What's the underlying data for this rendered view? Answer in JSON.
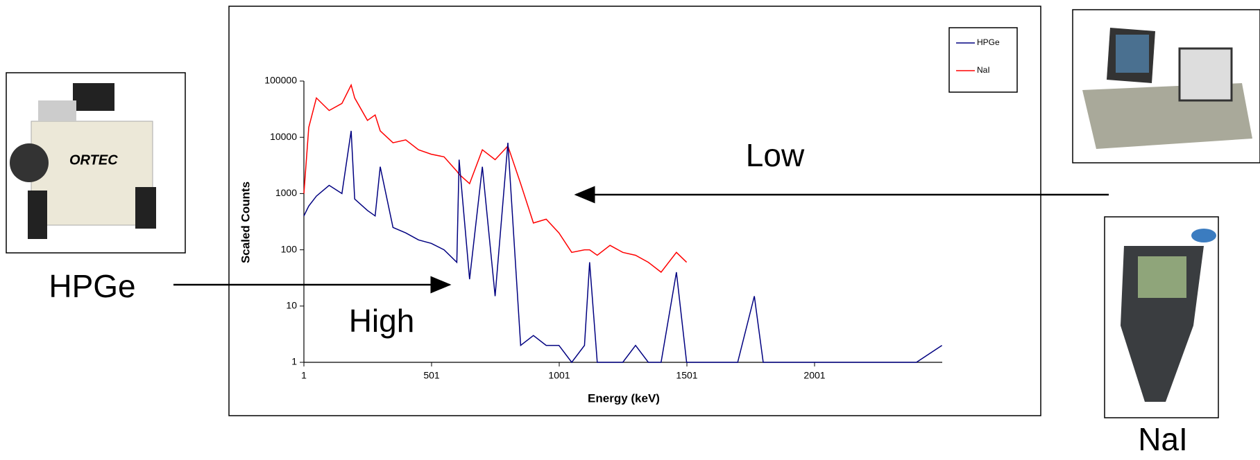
{
  "chart_data": {
    "type": "line",
    "x": [
      1,
      20,
      50,
      100,
      150,
      186,
      200,
      250,
      280,
      300,
      350,
      400,
      450,
      500,
      550,
      600,
      609,
      650,
      700,
      750,
      800,
      850,
      900,
      950,
      1000,
      1050,
      1100,
      1120,
      1150,
      1200,
      1250,
      1300,
      1350,
      1400,
      1460,
      1500,
      1550,
      1600,
      1700,
      1765,
      1800,
      1900,
      2000,
      2100,
      2200,
      2300,
      2400,
      2500
    ],
    "series": [
      {
        "name": "HPGe",
        "color": "#000080",
        "values": [
          400,
          600,
          900,
          1400,
          1000,
          13000,
          800,
          500,
          400,
          3000,
          250,
          200,
          150,
          130,
          100,
          60,
          4000,
          30,
          3000,
          15,
          8000,
          2,
          3,
          2,
          2,
          1,
          2,
          60,
          1,
          1,
          1,
          2,
          1,
          1,
          40,
          1,
          1,
          1,
          1,
          15,
          1,
          1,
          1,
          1,
          1,
          1,
          1,
          2
        ]
      },
      {
        "name": "NaI",
        "color": "#ff0000",
        "values": [
          1000,
          15000,
          50000,
          30000,
          40000,
          85000,
          50000,
          20000,
          25000,
          13000,
          8000,
          9000,
          6000,
          5000,
          4500,
          2500,
          2200,
          1500,
          6000,
          4000,
          7000,
          1500,
          300,
          350,
          200,
          90,
          100,
          100,
          80,
          120,
          90,
          80,
          60,
          40,
          90,
          60,
          null,
          null,
          null,
          null,
          null,
          null,
          null,
          null,
          null,
          null,
          null,
          null
        ]
      }
    ],
    "xlim": [
      1,
      2501
    ],
    "xticks": [
      1,
      501,
      1001,
      1501,
      2001
    ],
    "ylim": [
      1,
      100000
    ],
    "yticks": [
      1,
      10,
      100,
      1000,
      10000,
      100000
    ],
    "log_y": true,
    "xlabel": "Energy (keV)",
    "ylabel": "Scaled Counts",
    "legend": "upper right"
  },
  "annotations": {
    "low": "Low",
    "high": "High",
    "hpge_label": "HPGe",
    "nai_label": "NaI"
  }
}
